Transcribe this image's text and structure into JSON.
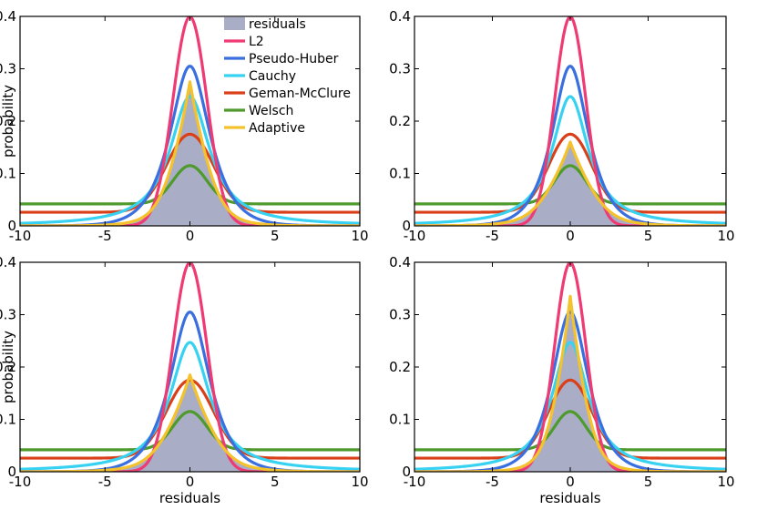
{
  "chart_data": {
    "type": "line",
    "layout": "2x2 grid",
    "xlabel": "residuals",
    "ylabel": "probability",
    "xlim": [
      -10,
      10
    ],
    "ylim": [
      0,
      0.4
    ],
    "xticks": [
      "-10",
      "-5",
      "0",
      "5",
      "10"
    ],
    "yticks": [
      "0",
      "0.1",
      "0.2",
      "0.3",
      "0.4"
    ],
    "colors": {
      "residuals": "#a9adc6",
      "L2": "#ef3a73",
      "Pseudo-Huber": "#3a6fe0",
      "Cauchy": "#37d2f2",
      "Geman-McClure": "#d9401a",
      "Welsch": "#4e9a2c",
      "Adaptive": "#f4c22c"
    },
    "legend": {
      "placement": "top-right of top-left panel",
      "entries": [
        "residuals",
        "L2",
        "Pseudo-Huber",
        "Cauchy",
        "Geman-McClure",
        "Welsch",
        "Adaptive"
      ]
    },
    "series_peaks": {
      "L2": 0.399,
      "Pseudo-Huber": 0.305,
      "Cauchy": 0.247,
      "Geman-McClure": 0.175,
      "Welsch": 0.115
    },
    "welsch_floor": 0.042,
    "panels": [
      {
        "position": "top-left",
        "residuals_peak": 0.27,
        "residuals_width": 1.1,
        "adaptive_peak": 0.275,
        "adaptive_width": 1.05,
        "show_xlabel": false,
        "show_ylabel": true
      },
      {
        "position": "top-right",
        "residuals_peak": 0.16,
        "residuals_width": 1.4,
        "adaptive_peak": 0.16,
        "adaptive_width": 1.4,
        "show_xlabel": false,
        "show_ylabel": false
      },
      {
        "position": "bottom-left",
        "residuals_peak": 0.18,
        "residuals_width": 1.3,
        "adaptive_peak": 0.185,
        "adaptive_width": 1.3,
        "show_xlabel": true,
        "show_ylabel": true
      },
      {
        "position": "bottom-right",
        "residuals_peak": 0.33,
        "residuals_width": 0.95,
        "adaptive_peak": 0.335,
        "adaptive_width": 0.95,
        "show_xlabel": true,
        "show_ylabel": false
      }
    ]
  }
}
